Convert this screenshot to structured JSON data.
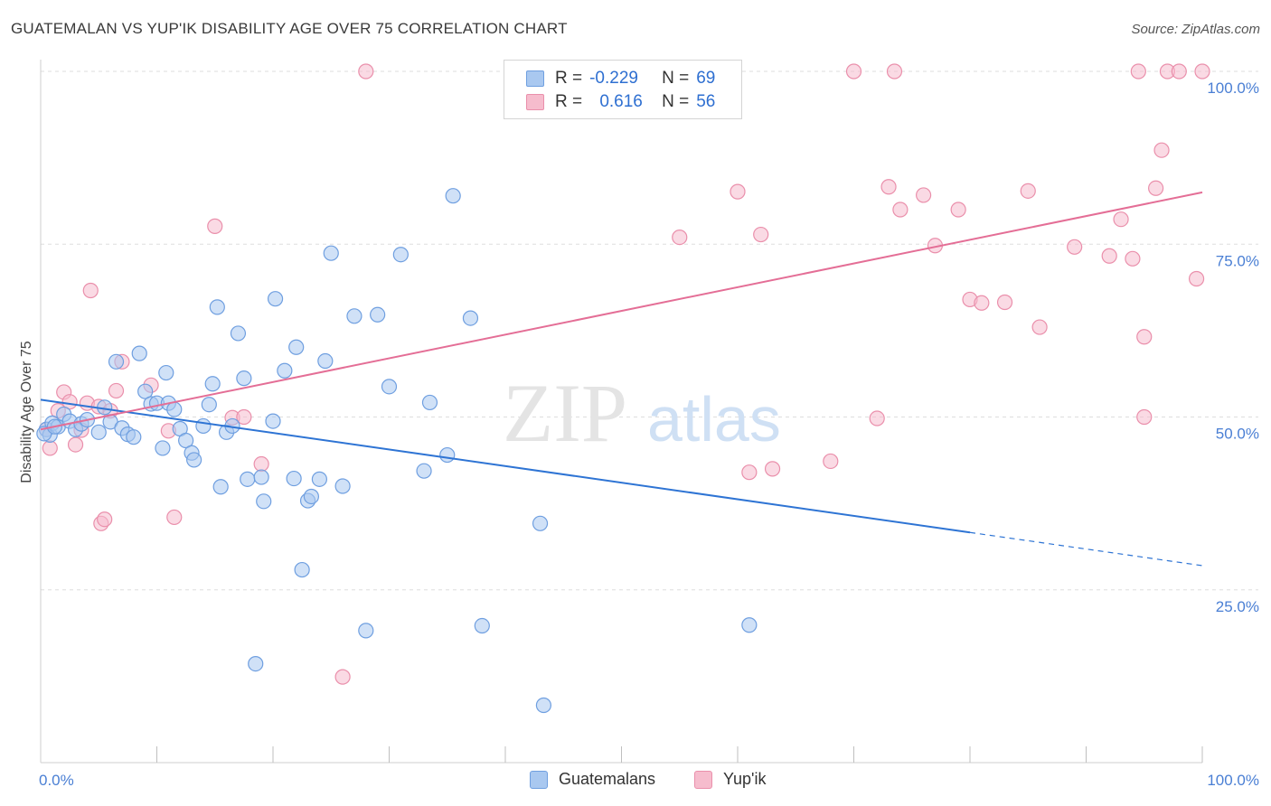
{
  "title": "GUATEMALAN VS YUP'IK DISABILITY AGE OVER 75 CORRELATION CHART",
  "source": "Source: ZipAtlas.com",
  "watermark": {
    "zip": "ZIP",
    "atlas": "atlas"
  },
  "colors": {
    "blue_fill": "#a9c8f0",
    "blue_stroke": "#6f9fe0",
    "blue_line": "#2e74d4",
    "pink_fill": "#f6bccd",
    "pink_stroke": "#ea8fab",
    "pink_line": "#e46e96",
    "tick_text": "#4a7fd4",
    "grid": "#dedede"
  },
  "legend": {
    "rows": [
      {
        "r_label": "R =",
        "r_value": "-0.229",
        "n_label": "N =",
        "n_value": "69",
        "series": "Guatemalans"
      },
      {
        "r_label": "R =",
        "r_value": "0.616",
        "n_label": "N =",
        "n_value": "56",
        "series": "Yup'ik"
      }
    ]
  },
  "chart_data": {
    "type": "scatter",
    "title": "GUATEMALAN VS YUP'IK DISABILITY AGE OVER 75 CORRELATION CHART",
    "xlabel": "",
    "ylabel": "Disability Age Over 75",
    "xlim": [
      0,
      100
    ],
    "ylim": [
      0,
      100
    ],
    "x_tick_labels": [
      "0.0%",
      "100.0%"
    ],
    "y_tick_labels": [
      "25.0%",
      "50.0%",
      "75.0%",
      "100.0%"
    ],
    "y_ticks": [
      25,
      50,
      75,
      100
    ],
    "grid": "horizontal dashed",
    "legend_position": "top-center",
    "series": [
      {
        "name": "Guatemalans",
        "trend": {
          "x0": 0,
          "y0": 52.5,
          "x1": 80,
          "y1": 33.3,
          "dashed_to_x": 100,
          "dashed_to_y": 28.5
        },
        "points": [
          [
            0.5,
            48.2
          ],
          [
            0.8,
            47.4
          ],
          [
            1.0,
            49.1
          ],
          [
            1.5,
            48.6
          ],
          [
            2.0,
            50.4
          ],
          [
            2.5,
            49.4
          ],
          [
            3.0,
            48.2
          ],
          [
            3.5,
            49.0
          ],
          [
            4.0,
            49.6
          ],
          [
            5.0,
            47.8
          ],
          [
            5.5,
            51.4
          ],
          [
            6.0,
            49.3
          ],
          [
            6.5,
            58.0
          ],
          [
            7.0,
            48.4
          ],
          [
            7.5,
            47.5
          ],
          [
            8.0,
            47.1
          ],
          [
            8.5,
            59.2
          ],
          [
            9.0,
            53.7
          ],
          [
            9.5,
            51.9
          ],
          [
            10.0,
            52.0
          ],
          [
            10.5,
            45.5
          ],
          [
            10.8,
            56.4
          ],
          [
            11.0,
            52.0
          ],
          [
            11.5,
            51.1
          ],
          [
            12.0,
            48.3
          ],
          [
            12.5,
            46.6
          ],
          [
            13.0,
            44.8
          ],
          [
            13.2,
            43.8
          ],
          [
            14.0,
            48.7
          ],
          [
            14.5,
            51.8
          ],
          [
            14.8,
            54.8
          ],
          [
            15.2,
            65.9
          ],
          [
            15.5,
            39.9
          ],
          [
            16.0,
            47.8
          ],
          [
            16.5,
            48.7
          ],
          [
            17.0,
            62.1
          ],
          [
            17.5,
            55.6
          ],
          [
            17.8,
            41.0
          ],
          [
            18.5,
            14.3
          ],
          [
            19.0,
            41.3
          ],
          [
            19.2,
            37.8
          ],
          [
            20.0,
            49.4
          ],
          [
            20.2,
            67.1
          ],
          [
            21.0,
            56.7
          ],
          [
            21.8,
            41.1
          ],
          [
            22.0,
            60.1
          ],
          [
            22.5,
            27.9
          ],
          [
            23.0,
            37.9
          ],
          [
            23.3,
            38.5
          ],
          [
            24.0,
            41.0
          ],
          [
            24.5,
            58.1
          ],
          [
            25.0,
            73.7
          ],
          [
            26.0,
            40.0
          ],
          [
            27.0,
            64.6
          ],
          [
            28.0,
            19.1
          ],
          [
            29.0,
            64.8
          ],
          [
            30.0,
            54.4
          ],
          [
            31.0,
            73.5
          ],
          [
            33.0,
            42.2
          ],
          [
            33.5,
            52.1
          ],
          [
            35.0,
            44.5
          ],
          [
            35.5,
            82.0
          ],
          [
            37.0,
            64.3
          ],
          [
            38.0,
            19.8
          ],
          [
            43.0,
            34.6
          ],
          [
            43.3,
            8.3
          ],
          [
            61.0,
            19.9
          ],
          [
            0.3,
            47.6
          ],
          [
            1.2,
            48.6
          ]
        ]
      },
      {
        "name": "Yup'ik",
        "trend": {
          "x0": 0,
          "y0": 48.2,
          "x1": 100,
          "y1": 82.5
        },
        "points": [
          [
            0.5,
            48.2
          ],
          [
            0.8,
            45.5
          ],
          [
            1.5,
            50.9
          ],
          [
            2.0,
            53.6
          ],
          [
            2.5,
            52.2
          ],
          [
            3.0,
            46.0
          ],
          [
            3.5,
            48.1
          ],
          [
            4.0,
            52.0
          ],
          [
            4.3,
            68.3
          ],
          [
            5.0,
            51.5
          ],
          [
            5.2,
            34.6
          ],
          [
            5.5,
            35.2
          ],
          [
            6.0,
            50.9
          ],
          [
            6.5,
            53.8
          ],
          [
            7.0,
            58.0
          ],
          [
            9.5,
            54.6
          ],
          [
            11.0,
            48.0
          ],
          [
            11.5,
            35.5
          ],
          [
            15.0,
            77.6
          ],
          [
            16.5,
            49.9
          ],
          [
            17.5,
            50.0
          ],
          [
            19.0,
            43.2
          ],
          [
            26.0,
            12.4
          ],
          [
            28.0,
            100.0
          ],
          [
            55.0,
            76.0
          ],
          [
            60.0,
            82.6
          ],
          [
            61.0,
            42.0
          ],
          [
            62.0,
            76.4
          ],
          [
            63.0,
            42.5
          ],
          [
            68.0,
            43.6
          ],
          [
            70.0,
            100.0
          ],
          [
            72.0,
            49.8
          ],
          [
            73.0,
            83.3
          ],
          [
            73.5,
            100.0
          ],
          [
            74.0,
            80.0
          ],
          [
            76.0,
            82.1
          ],
          [
            77.0,
            74.8
          ],
          [
            79.0,
            80.0
          ],
          [
            80.0,
            67.0
          ],
          [
            81.0,
            66.5
          ],
          [
            83.0,
            66.6
          ],
          [
            85.0,
            82.7
          ],
          [
            86.0,
            63.0
          ],
          [
            89.0,
            74.6
          ],
          [
            92.0,
            73.3
          ],
          [
            93.0,
            78.6
          ],
          [
            94.0,
            72.9
          ],
          [
            94.5,
            100.0
          ],
          [
            95.0,
            61.6
          ],
          [
            95.0,
            50.0
          ],
          [
            96.0,
            83.1
          ],
          [
            96.5,
            88.6
          ],
          [
            97.0,
            100.0
          ],
          [
            98.0,
            100.0
          ],
          [
            99.5,
            70.0
          ],
          [
            100.0,
            100.0
          ]
        ]
      }
    ]
  }
}
